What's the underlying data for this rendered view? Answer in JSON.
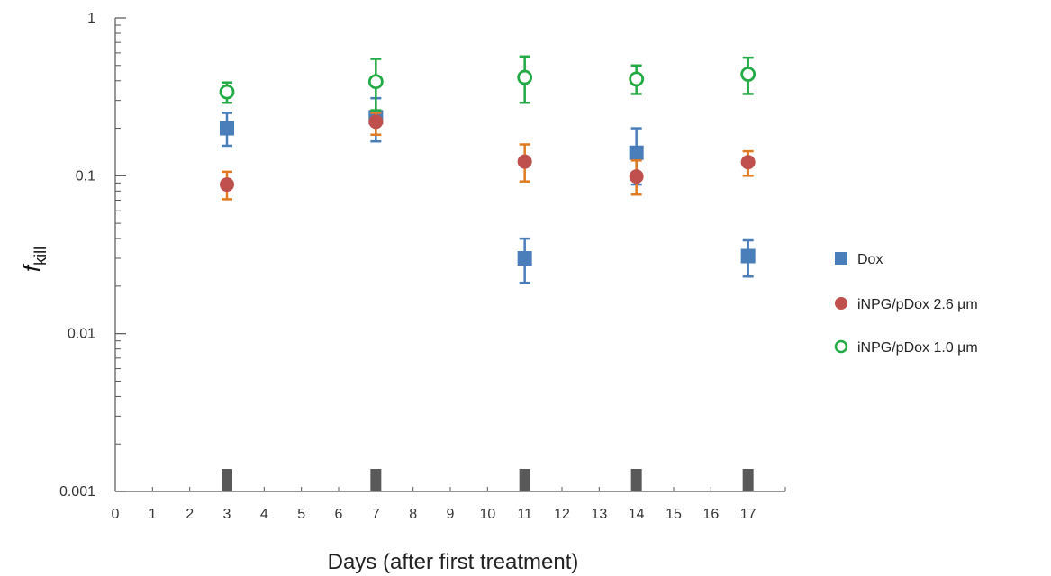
{
  "chart_data": {
    "type": "scatter",
    "title": "",
    "xlabel": "Days (after first treatment)",
    "ylabel": {
      "main": "f",
      "sub": "kill"
    },
    "xlim": [
      0,
      18
    ],
    "ylim": [
      0.001,
      1
    ],
    "yscale": "log",
    "x_ticks": [
      0,
      1,
      2,
      3,
      4,
      5,
      6,
      7,
      8,
      9,
      10,
      11,
      12,
      13,
      14,
      15,
      16,
      17
    ],
    "y_ticks": [
      {
        "value": 0.001,
        "label": "0.001"
      },
      {
        "value": 0.01,
        "label": "0.01"
      },
      {
        "value": 0.1,
        "label": "0.1"
      },
      {
        "value": 1,
        "label": "1"
      }
    ],
    "grid": false,
    "legend_position": "right",
    "treatment_days": [
      3,
      7,
      11,
      14,
      17
    ],
    "series": [
      {
        "name": "Dox",
        "marker": "square",
        "color": "#4a7ebb",
        "error_color": "#4a7ebb",
        "points": [
          {
            "x": 3,
            "y": 0.2,
            "lo": 0.155,
            "hi": 0.25
          },
          {
            "x": 7,
            "y": 0.235,
            "lo": 0.165,
            "hi": 0.31
          },
          {
            "x": 11,
            "y": 0.03,
            "lo": 0.021,
            "hi": 0.04
          },
          {
            "x": 14,
            "y": 0.14,
            "lo": 0.088,
            "hi": 0.2
          },
          {
            "x": 17,
            "y": 0.031,
            "lo": 0.023,
            "hi": 0.039
          }
        ]
      },
      {
        "name": "iNPG/pDox 2.6 µm",
        "marker": "circle",
        "color": "#c0504d",
        "error_color": "#e07b22",
        "points": [
          {
            "x": 3,
            "y": 0.088,
            "lo": 0.071,
            "hi": 0.106
          },
          {
            "x": 7,
            "y": 0.22,
            "lo": 0.182,
            "hi": 0.25
          },
          {
            "x": 11,
            "y": 0.123,
            "lo": 0.092,
            "hi": 0.158
          },
          {
            "x": 14,
            "y": 0.099,
            "lo": 0.076,
            "hi": 0.125
          },
          {
            "x": 17,
            "y": 0.122,
            "lo": 0.1,
            "hi": 0.143
          }
        ]
      },
      {
        "name": "iNPG/pDox 1.0 µm",
        "marker": "open-circle",
        "color": "#22aa44",
        "error_color": "#22aa44",
        "points": [
          {
            "x": 3,
            "y": 0.34,
            "lo": 0.29,
            "hi": 0.39
          },
          {
            "x": 7,
            "y": 0.395,
            "lo": 0.26,
            "hi": 0.55
          },
          {
            "x": 11,
            "y": 0.42,
            "lo": 0.29,
            "hi": 0.57
          },
          {
            "x": 14,
            "y": 0.41,
            "lo": 0.33,
            "hi": 0.5
          },
          {
            "x": 17,
            "y": 0.44,
            "lo": 0.33,
            "hi": 0.56
          }
        ]
      }
    ]
  }
}
